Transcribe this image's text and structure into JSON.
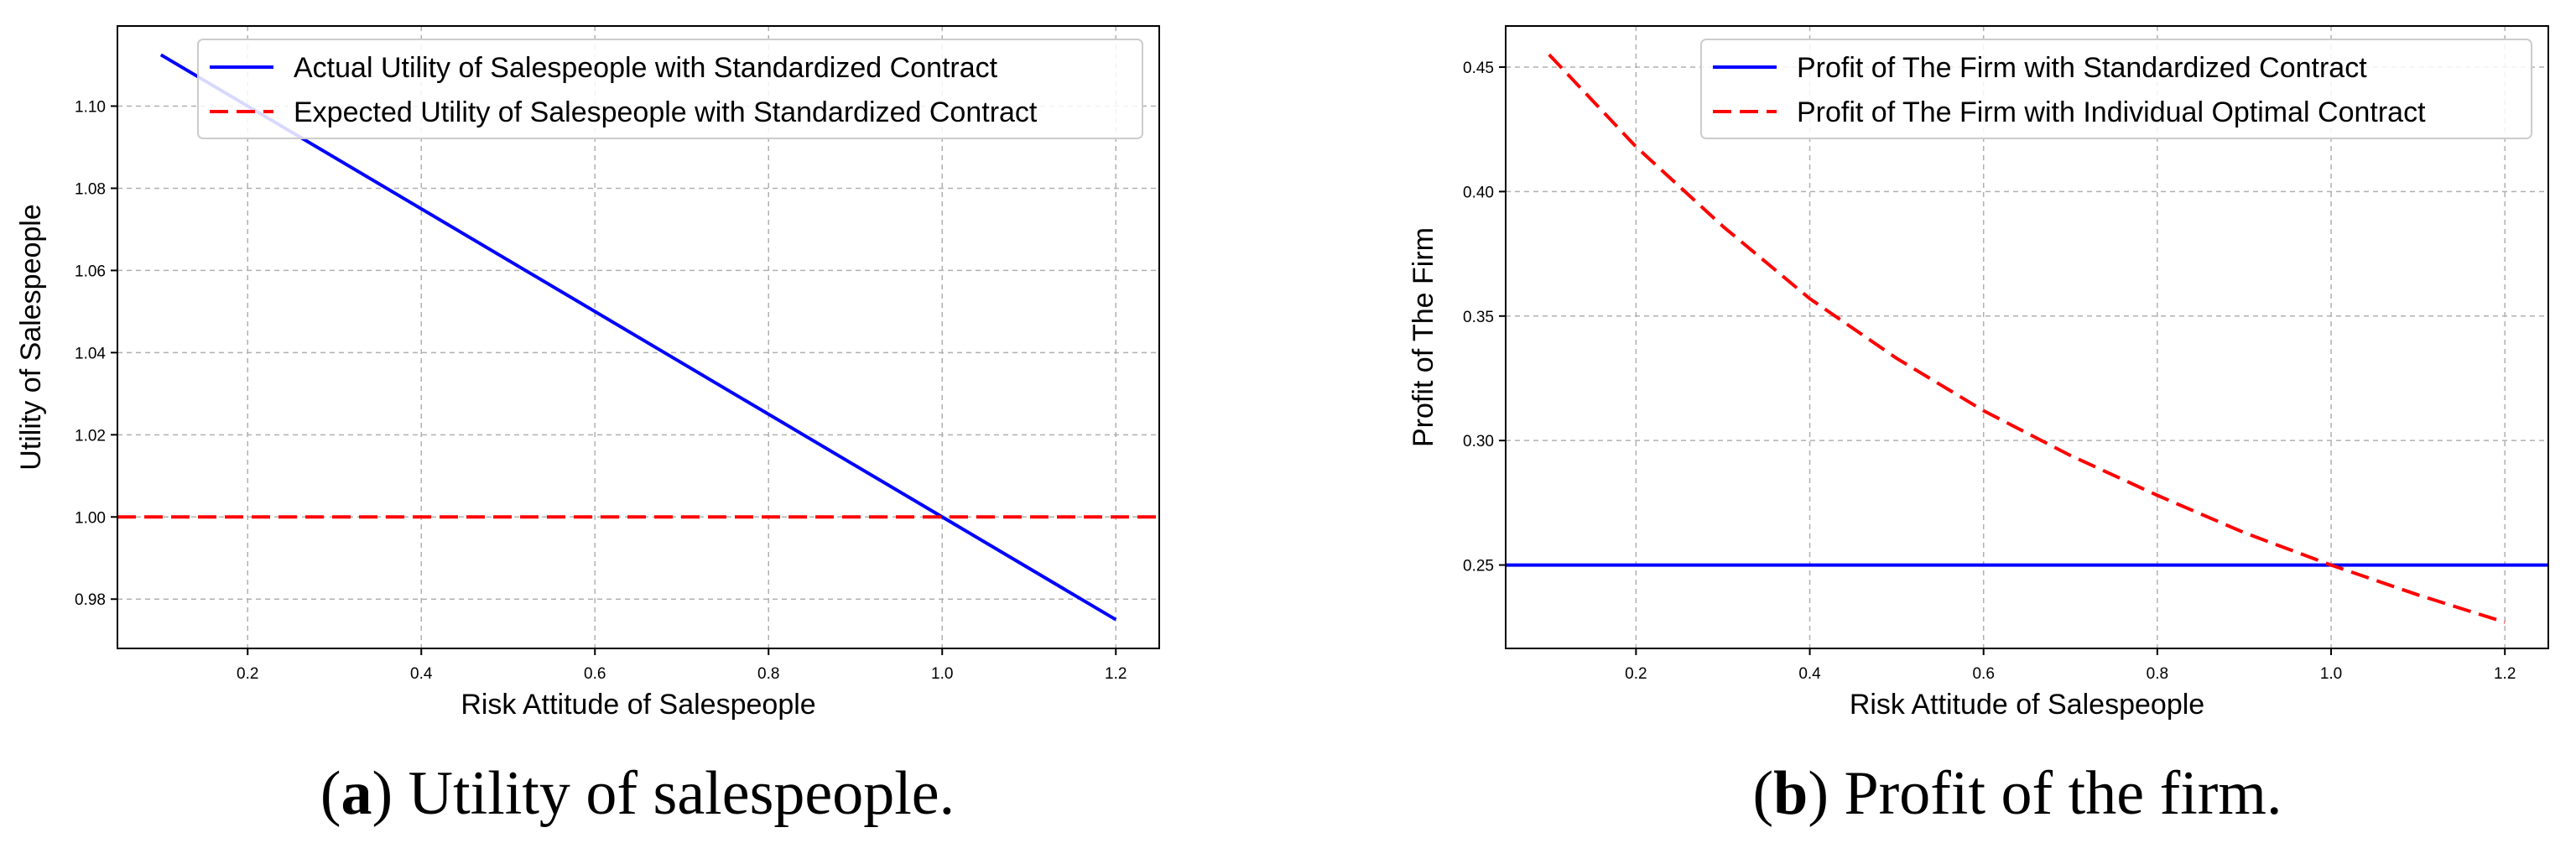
{
  "chart_data": [
    {
      "type": "line",
      "xlabel": "Risk Attitude of Salespeople",
      "ylabel": "Utility of Salespeople",
      "xlim": [
        0.05,
        1.25
      ],
      "ylim": [
        0.968,
        1.1195
      ],
      "xticks": [
        "0.2",
        "0.4",
        "0.6",
        "0.8",
        "1.0",
        "1.2"
      ],
      "xtick_values": [
        0.2,
        0.4,
        0.6,
        0.8,
        1.0,
        1.2
      ],
      "yticks": [
        "0.98",
        "1.00",
        "1.02",
        "1.04",
        "1.06",
        "1.08",
        "1.10"
      ],
      "ytick_values": [
        0.98,
        1.0,
        1.02,
        1.04,
        1.06,
        1.08,
        1.1
      ],
      "grid": true,
      "legend_position": "top-right",
      "caption_label": "a",
      "caption_text": ") Utility of salespeople.",
      "series": [
        {
          "name": "Actual Utility of Salespeople with Standardized Contract",
          "color": "#0000ff",
          "style": "solid",
          "x": [
            0.1,
            1.2
          ],
          "y": [
            1.1125,
            0.975
          ]
        },
        {
          "name": "Expected Utility of Salespeople with Standardized Contract",
          "color": "#ff0000",
          "style": "dashed",
          "x": [
            0.05,
            1.25
          ],
          "y": [
            1.0,
            1.0
          ]
        }
      ]
    },
    {
      "type": "line",
      "xlabel": "Risk Attitude of Salespeople",
      "ylabel": "Profit of The Firm",
      "xlim": [
        0.05,
        1.25
      ],
      "ylim": [
        0.2165,
        0.4665
      ],
      "xticks": [
        "0.2",
        "0.4",
        "0.6",
        "0.8",
        "1.0",
        "1.2"
      ],
      "xtick_values": [
        0.2,
        0.4,
        0.6,
        0.8,
        1.0,
        1.2
      ],
      "yticks": [
        "0.25",
        "0.30",
        "0.35",
        "0.40",
        "0.45"
      ],
      "ytick_values": [
        0.25,
        0.3,
        0.35,
        0.4,
        0.45
      ],
      "grid": true,
      "legend_position": "top-right",
      "caption_label": "b",
      "caption_text": ") Profit of the firm.",
      "series": [
        {
          "name": "Profit of The Firm with Standardized Contract",
          "color": "#0000ff",
          "style": "solid",
          "x": [
            0.05,
            1.25
          ],
          "y": [
            0.25,
            0.25
          ]
        },
        {
          "name": "Profit of The Firm with Individual Optimal Contract",
          "color": "#ff0000",
          "style": "dashed",
          "x": [
            0.1,
            0.2,
            0.3,
            0.4,
            0.5,
            0.6,
            0.7,
            0.8,
            0.9,
            1.0,
            1.1,
            1.2
          ],
          "y": [
            0.455,
            0.418,
            0.386,
            0.357,
            0.333,
            0.312,
            0.294,
            0.278,
            0.263,
            0.25,
            0.238,
            0.227
          ]
        }
      ]
    }
  ]
}
